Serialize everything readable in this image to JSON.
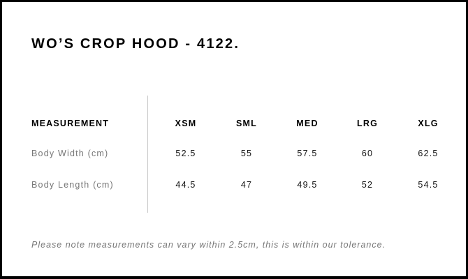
{
  "title": "WO’S CROP HOOD - 4122.",
  "table": {
    "header_label": "MEASUREMENT",
    "sizes": [
      "XSM",
      "SML",
      "MED",
      "LRG",
      "XLG"
    ],
    "rows": [
      {
        "label": "Body Width (cm)",
        "values": [
          "52.5",
          "55",
          "57.5",
          "60",
          "62.5"
        ]
      },
      {
        "label": "Body Length (cm)",
        "values": [
          "44.5",
          "47",
          "49.5",
          "52",
          "54.5"
        ]
      }
    ]
  },
  "note": "Please note measurements can vary within 2.5cm, this is within our tolerance."
}
